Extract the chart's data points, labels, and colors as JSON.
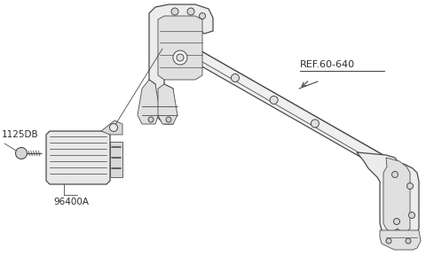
{
  "bg_color": "#ffffff",
  "line_color": "#4a4a4a",
  "fill_light": "#f2f2f2",
  "fill_mid": "#e0e0e0",
  "fill_dark": "#c8c8c8",
  "text_color": "#2a2a2a",
  "label_1125DB": "1125DB",
  "label_96400A": "96400A",
  "label_ref": "REF.60-640",
  "lw_main": 0.9,
  "lw_thin": 0.6
}
